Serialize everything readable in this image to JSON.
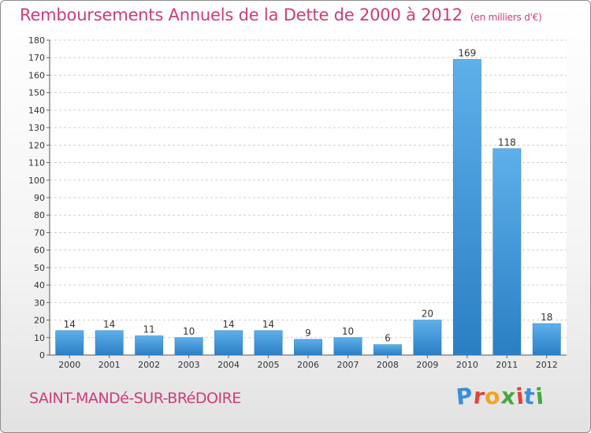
{
  "header": {
    "title": "Remboursements Annuels de la Dette de 2000 à 2012",
    "unit": "(en milliers d'€)"
  },
  "footer": {
    "commune": "SAINT-MANDé-SUR-BRéDOIRE",
    "logo_letters": [
      "P",
      "r",
      "o",
      "x",
      "i",
      "t",
      "i"
    ],
    "logo_colors": [
      "#3a8ed8",
      "#e2423a",
      "#f2a322",
      "#47a641",
      "#e2423a",
      "#3a8ed8",
      "#47a641"
    ]
  },
  "colors": {
    "accent": "#cc3d7a",
    "bar_light": "#5eb0ea",
    "bar_dark": "#2a7fc4",
    "grid": "#d0d0d0",
    "text": "#333333"
  },
  "chart_data": {
    "type": "bar",
    "title": "Remboursements Annuels de la Dette de 2000 à 2012",
    "subtitle": "(en milliers d'€)",
    "xlabel": "",
    "ylabel": "",
    "categories": [
      "2000",
      "2001",
      "2002",
      "2003",
      "2004",
      "2005",
      "2006",
      "2007",
      "2008",
      "2009",
      "2010",
      "2011",
      "2012"
    ],
    "values": [
      14,
      14,
      11,
      10,
      14,
      14,
      9,
      10,
      6,
      20,
      169,
      118,
      18
    ],
    "ylim": [
      0,
      180
    ],
    "yticks": [
      0,
      10,
      20,
      30,
      40,
      50,
      60,
      70,
      80,
      90,
      100,
      110,
      120,
      130,
      140,
      150,
      160,
      170,
      180
    ],
    "grid": true,
    "legend": "none"
  }
}
